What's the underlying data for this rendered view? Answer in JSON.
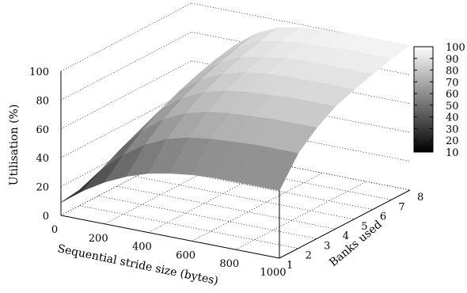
{
  "chart_data": {
    "type": "surface",
    "xlabel": "Sequential stride size (bytes)",
    "ylabel": "Banks used",
    "zlabel": "Utilisation (%)",
    "x_ticks": [
      "0",
      "200",
      "400",
      "600",
      "800",
      "1000"
    ],
    "y_ticks": [
      "1",
      "2",
      "3",
      "4",
      "5",
      "6",
      "7",
      "8"
    ],
    "z_ticks": [
      "0",
      "20",
      "40",
      "60",
      "80",
      "100"
    ],
    "colorbar_ticks": [
      "10",
      "20",
      "30",
      "40",
      "50",
      "60",
      "70",
      "80",
      "90",
      "100"
    ],
    "xlim": [
      0,
      1000
    ],
    "ylim": [
      1,
      8
    ],
    "zlim": [
      0,
      100
    ],
    "x": [
      0,
      100,
      200,
      300,
      400,
      500,
      600,
      700,
      800,
      900,
      1000
    ],
    "banks": [
      1,
      2,
      3,
      4,
      5,
      6,
      7,
      8
    ],
    "utilisation": [
      [
        9,
        20,
        29,
        36,
        41,
        44,
        46,
        47,
        47,
        47,
        47
      ],
      [
        11,
        28,
        41,
        51,
        58,
        62,
        64,
        65,
        66,
        66,
        66
      ],
      [
        13,
        35,
        51,
        62,
        69,
        73,
        75,
        76,
        77,
        77,
        77
      ],
      [
        15,
        41,
        59,
        70,
        77,
        81,
        83,
        84,
        85,
        85,
        85
      ],
      [
        16,
        46,
        65,
        76,
        83,
        87,
        89,
        90,
        90,
        90,
        90
      ],
      [
        18,
        50,
        70,
        81,
        88,
        91,
        93,
        94,
        94,
        94,
        94
      ],
      [
        19,
        54,
        74,
        85,
        92,
        95,
        97,
        97,
        98,
        98,
        98
      ],
      [
        20,
        57,
        77,
        88,
        95,
        98,
        99,
        100,
        100,
        100,
        100
      ]
    ],
    "grid": true,
    "colormap": "grayscale",
    "colormap_range": [
      10,
      100
    ]
  }
}
